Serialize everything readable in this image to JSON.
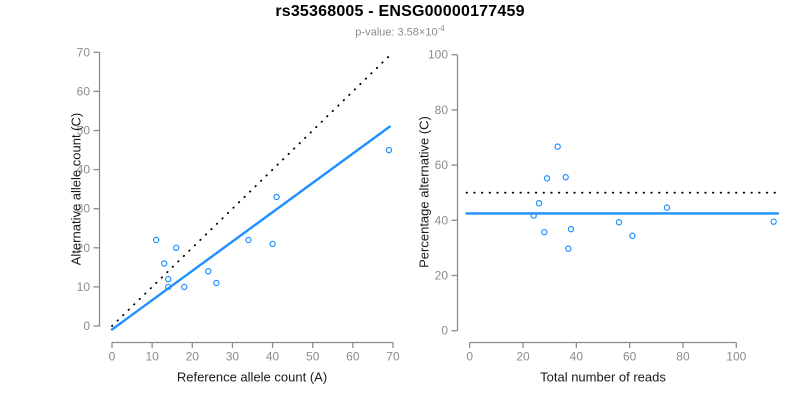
{
  "header": {
    "title": "rs35368005 - ENSG00000177459",
    "pvalue_prefix": "p-value: 3.58×10",
    "pvalue_exponent": "-4"
  },
  "colors": {
    "accent_blue": "#1E90FF",
    "axis_gray": "#8c8c8c",
    "tick_label_gray": "#8c8c8c",
    "label_black": "#1a1a1a",
    "dotted_black": "#000000"
  },
  "chart_data": [
    {
      "type": "scatter",
      "name": "allele-counts-scatter",
      "xlabel": "Reference allele count (A)",
      "ylabel": "Alternative allele count (C)",
      "xlim": [
        0,
        70
      ],
      "ylim": [
        0,
        70
      ],
      "xticks": [
        0,
        10,
        20,
        30,
        40,
        50,
        60,
        70
      ],
      "yticks": [
        0,
        10,
        20,
        30,
        40,
        50,
        60,
        70
      ],
      "grid": false,
      "legend": "none",
      "series": [
        {
          "name": "observed-allele-counts",
          "type": "points",
          "marker": "open-circle",
          "color": "#1E90FF",
          "points": [
            [
              11,
              22
            ],
            [
              13,
              16
            ],
            [
              14,
              12
            ],
            [
              14,
              10
            ],
            [
              16,
              20
            ],
            [
              18,
              10
            ],
            [
              24,
              14
            ],
            [
              26,
              11
            ],
            [
              34,
              22
            ],
            [
              40,
              21
            ],
            [
              41,
              33
            ],
            [
              69,
              45
            ]
          ]
        },
        {
          "name": "identity-line-y-equals-x",
          "type": "segment",
          "style": "dotted",
          "color": "#000000",
          "from": [
            0,
            0
          ],
          "to": [
            69,
            69
          ]
        },
        {
          "name": "regression-fit-line",
          "type": "segment",
          "style": "solid",
          "color": "#1E90FF",
          "from": [
            0,
            -0.9
          ],
          "to": [
            69.2,
            51.0
          ]
        }
      ]
    },
    {
      "type": "scatter",
      "name": "percentage-vs-reads-scatter",
      "xlabel": "Total number of reads",
      "ylabel": "Percentage alternative (C)",
      "xlim": [
        0,
        115
      ],
      "ylim": [
        0,
        100
      ],
      "xticks": [
        0,
        20,
        40,
        60,
        80,
        100
      ],
      "yticks": [
        0,
        20,
        40,
        60,
        80,
        100
      ],
      "grid": false,
      "legend": "none",
      "series": [
        {
          "name": "percentage-alternative-points",
          "type": "points",
          "marker": "open-circle",
          "color": "#1E90FF",
          "points": [
            [
              33,
              66.7
            ],
            [
              29,
              55.2
            ],
            [
              26,
              46.2
            ],
            [
              24,
              41.7
            ],
            [
              36,
              55.6
            ],
            [
              28,
              35.7
            ],
            [
              38,
              36.8
            ],
            [
              37,
              29.7
            ],
            [
              56,
              39.3
            ],
            [
              61,
              34.4
            ],
            [
              74,
              44.6
            ],
            [
              114,
              39.5
            ]
          ]
        },
        {
          "name": "fifty-percent-reference-line",
          "type": "hline",
          "style": "dotted",
          "color": "#000000",
          "y": 50
        },
        {
          "name": "overall-percentage-line",
          "type": "hline",
          "style": "solid",
          "color": "#1E90FF",
          "y": 42.5
        }
      ]
    }
  ]
}
